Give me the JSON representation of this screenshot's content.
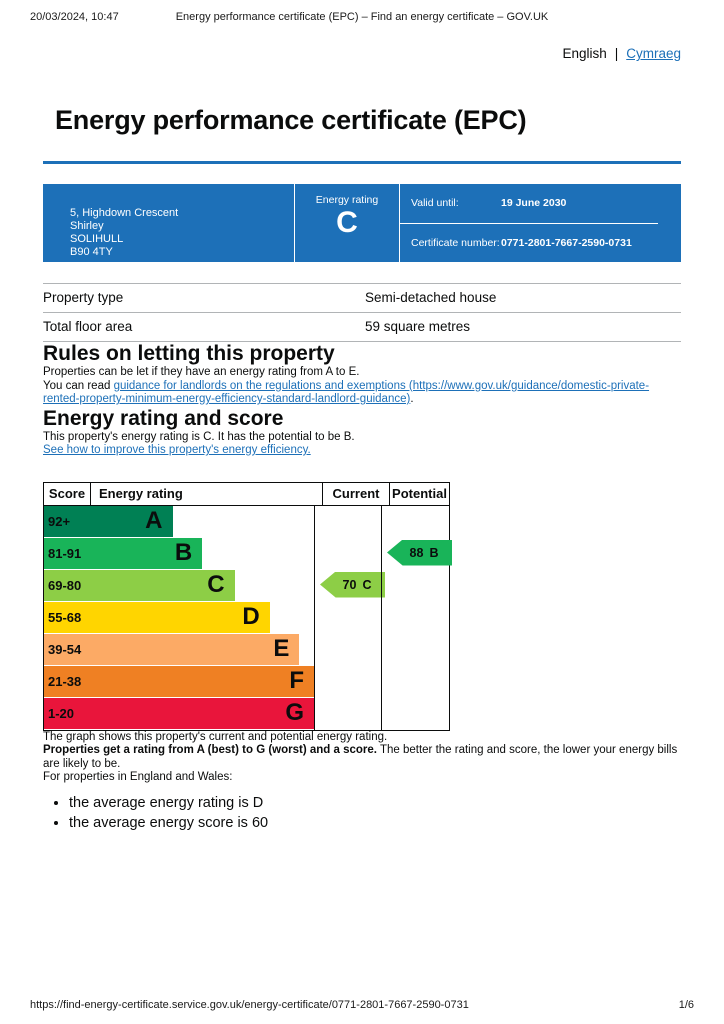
{
  "print_header": {
    "datetime": "20/03/2024, 10:47",
    "doc_title": "Energy performance certificate (EPC) – Find an energy certificate – GOV.UK"
  },
  "language": {
    "current": "English",
    "separator": "|",
    "alternate": "Cymraeg"
  },
  "page": {
    "title": "Energy performance certificate (EPC)"
  },
  "colors": {
    "brand_blue": "#1d70b8",
    "border_grey": "#b1b4b6"
  },
  "summary_banner": {
    "address_lines": [
      "5, Highdown Crescent",
      "Shirley",
      "SOLIHULL",
      "B90 4TY"
    ],
    "rating_label": "Energy rating",
    "rating_letter": "C",
    "valid_until_label": "Valid until:",
    "valid_until_value": "19 June 2030",
    "certificate_number_label": "Certificate number:",
    "certificate_number_value": "0771-2801-7667-2590-0731"
  },
  "property_details": {
    "rows": [
      {
        "label": "Property type",
        "value": "Semi-detached house"
      },
      {
        "label": "Total floor area",
        "value": "59 square metres"
      }
    ]
  },
  "rules_section": {
    "heading": "Rules on letting this property",
    "para1": "Properties can be let if they have an energy rating from A to E.",
    "para2_prefix": "You can read ",
    "para2_link": "guidance for landlords on the regulations and exemptions (https://www.gov.uk/guidance/domestic-private-rented-property-minimum-energy-efficiency-standard-landlord-guidance)",
    "para2_suffix": "."
  },
  "rating_section": {
    "heading": "Energy rating and score",
    "para1": "This property's energy rating is C. It has the potential to be B.",
    "improve_link": "See how to improve this property's energy efficiency."
  },
  "chart_data": {
    "type": "epc-band-chart",
    "headers": {
      "score": "Score",
      "rating": "Energy rating",
      "current": "Current",
      "potential": "Potential"
    },
    "bands": [
      {
        "score": "92+",
        "letter": "A",
        "color": "#008054",
        "width_pct": 25
      },
      {
        "score": "81-91",
        "letter": "B",
        "color": "#19b459",
        "width_pct": 36
      },
      {
        "score": "69-80",
        "letter": "C",
        "color": "#8dce46",
        "width_pct": 48
      },
      {
        "score": "55-68",
        "letter": "D",
        "color": "#ffd500",
        "width_pct": 61
      },
      {
        "score": "39-54",
        "letter": "E",
        "color": "#fcaa65",
        "width_pct": 72
      },
      {
        "score": "21-38",
        "letter": "F",
        "color": "#ef8023",
        "width_pct": 82
      },
      {
        "score": "1-20",
        "letter": "G",
        "color": "#e9153b",
        "width_pct": 95
      }
    ],
    "current": {
      "value": 70,
      "letter": "C",
      "color": "#8dce46",
      "band_index": 2
    },
    "potential": {
      "value": 88,
      "letter": "B",
      "color": "#19b459",
      "band_index": 1
    }
  },
  "chart_notes": {
    "para1": "The graph shows this property's current and potential energy rating.",
    "para2_bold": "Properties get a rating from A (best) to G (worst) and a score.",
    "para2_rest": " The better the rating and score, the lower your energy bills are likely to be.",
    "para3": "For properties in England and Wales:",
    "bullets": [
      "the average energy rating is D",
      "the average energy score is 60"
    ]
  },
  "print_footer": {
    "url": "https://find-energy-certificate.service.gov.uk/energy-certificate/0771-2801-7667-2590-0731",
    "page_indicator": "1/6"
  }
}
